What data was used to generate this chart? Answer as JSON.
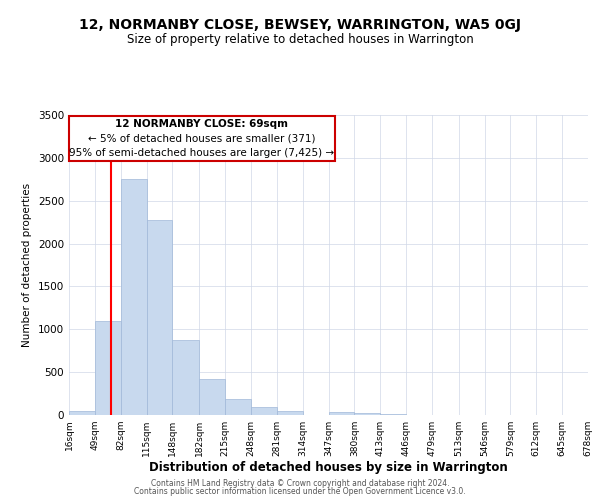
{
  "title": "12, NORMANBY CLOSE, BEWSEY, WARRINGTON, WA5 0GJ",
  "subtitle": "Size of property relative to detached houses in Warrington",
  "xlabel": "Distribution of detached houses by size in Warrington",
  "ylabel": "Number of detached properties",
  "bar_color": "#c8d9ee",
  "bar_edge_color": "#a0b8d8",
  "red_line_x": 69,
  "bin_edges": [
    16,
    49,
    82,
    115,
    148,
    182,
    215,
    248,
    281,
    314,
    347,
    380,
    413,
    446,
    479,
    513,
    546,
    579,
    612,
    645,
    678
  ],
  "bar_heights": [
    50,
    1100,
    2750,
    2280,
    880,
    420,
    185,
    95,
    45,
    5,
    40,
    25,
    10,
    0,
    0,
    0,
    0,
    0,
    0,
    0
  ],
  "tick_labels": [
    "16sqm",
    "49sqm",
    "82sqm",
    "115sqm",
    "148sqm",
    "182sqm",
    "215sqm",
    "248sqm",
    "281sqm",
    "314sqm",
    "347sqm",
    "380sqm",
    "413sqm",
    "446sqm",
    "479sqm",
    "513sqm",
    "546sqm",
    "579sqm",
    "612sqm",
    "645sqm",
    "678sqm"
  ],
  "annotation_title": "12 NORMANBY CLOSE: 69sqm",
  "annotation_line1": "← 5% of detached houses are smaller (371)",
  "annotation_line2": "95% of semi-detached houses are larger (7,425) →",
  "annotation_box_color": "#ffffff",
  "annotation_box_edge": "#cc0000",
  "footer1": "Contains HM Land Registry data © Crown copyright and database right 2024.",
  "footer2": "Contains public sector information licensed under the Open Government Licence v3.0.",
  "ylim": [
    0,
    3500
  ],
  "yticks": [
    0,
    500,
    1000,
    1500,
    2000,
    2500,
    3000,
    3500
  ]
}
